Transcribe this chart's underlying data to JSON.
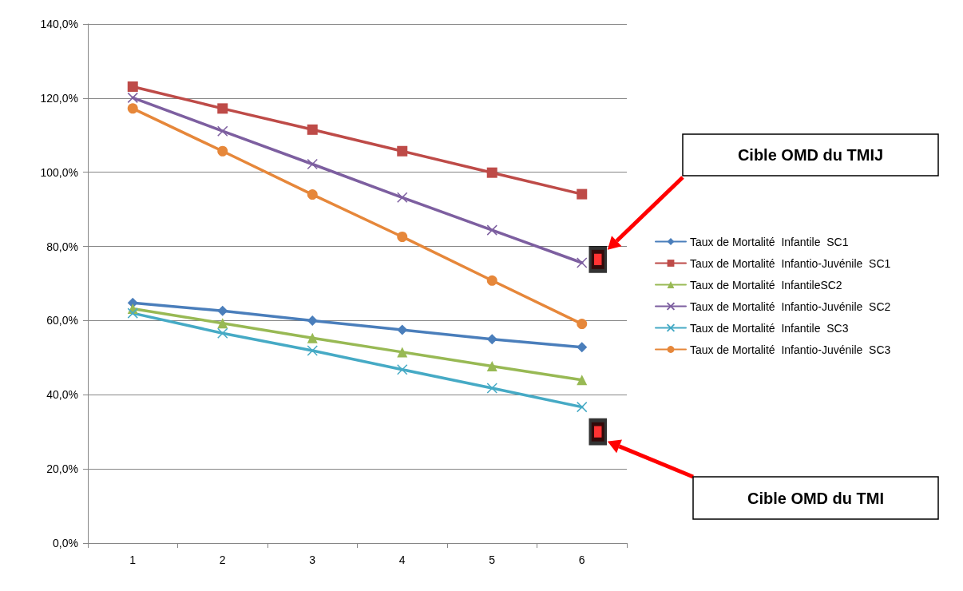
{
  "chart_data": {
    "type": "line",
    "categories": [
      "1",
      "2",
      "3",
      "4",
      "5",
      "6"
    ],
    "series": [
      {
        "name": "Taux de Mortalité  Infantile  SC1",
        "color": "#4a7ebb",
        "marker": "diamond",
        "values": [
          64.8,
          62.6,
          60.0,
          57.5,
          55.0,
          52.8
        ]
      },
      {
        "name": "Taux de Mortalité  Infantio-Juvénile  SC1",
        "color": "#be4b48",
        "marker": "square",
        "values": [
          123.1,
          117.2,
          111.5,
          105.7,
          99.9,
          94.1
        ]
      },
      {
        "name": "Taux de Mortalité  InfantileSC2",
        "color": "#98b954",
        "marker": "triangle",
        "values": [
          63.2,
          59.3,
          55.3,
          51.5,
          47.7,
          44.0
        ]
      },
      {
        "name": "Taux de Mortalité  Infantio-Juvénile  SC2",
        "color": "#7d5fa0",
        "marker": "cross",
        "values": [
          120.1,
          111.1,
          102.2,
          93.2,
          84.4,
          75.6
        ]
      },
      {
        "name": "Taux de Mortalité  Infantile  SC3",
        "color": "#46aac5",
        "marker": "cross",
        "values": [
          62.0,
          56.6,
          51.9,
          46.8,
          41.8,
          36.7
        ]
      },
      {
        "name": "Taux de Mortalité  Infantio-Juvénile  SC3",
        "color": "#e6873a",
        "marker": "circle",
        "values": [
          117.2,
          105.7,
          94.0,
          82.6,
          70.8,
          59.1
        ]
      },
      {
        "type": "scatter",
        "color": "#ff0000",
        "marker": "square",
        "x": [
          "6",
          "6"
        ],
        "values": [
          76.5,
          30.0
        ]
      }
    ],
    "ylim": [
      0,
      140
    ],
    "yticks": [
      {
        "value": 0,
        "label": "0,0%"
      },
      {
        "value": 20,
        "label": "20,0%"
      },
      {
        "value": 40,
        "label": "40,0%"
      },
      {
        "value": 60,
        "label": "60,0%"
      },
      {
        "value": 80,
        "label": "80,0%"
      },
      {
        "value": 100,
        "label": "100,0%"
      },
      {
        "value": 120,
        "label": "120,0%"
      },
      {
        "value": 140,
        "label": "140,0%"
      }
    ],
    "grid": "y",
    "legend": "right",
    "line_style": "solid",
    "annotations": [
      "Cible OMD du TMIJ",
      "Cible OMD du TMI"
    ]
  }
}
